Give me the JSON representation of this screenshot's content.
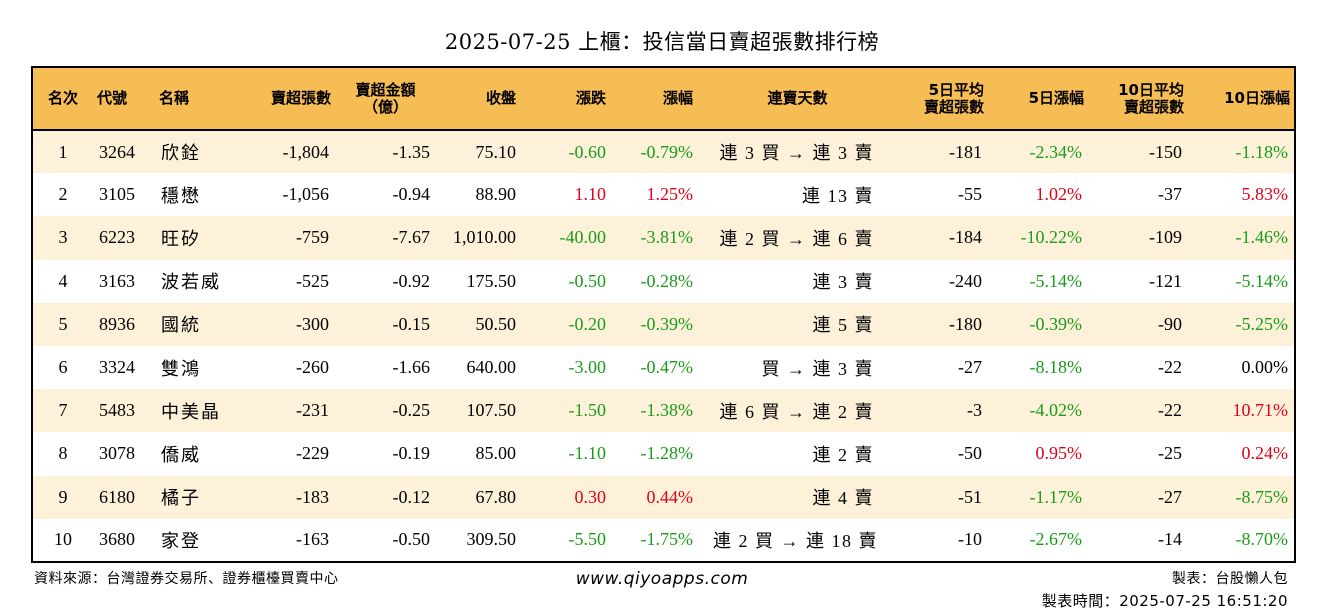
{
  "title": "2025-07-25 上櫃：投信當日賣超張數排行榜",
  "headers": {
    "rank": "名次",
    "code": "代號",
    "name": "名稱",
    "net_sell_lots": "賣超張數",
    "net_sell_amount_line1": "賣超金額",
    "net_sell_amount_line2": "（億）",
    "close": "收盤",
    "change": "漲跌",
    "change_pct": "漲幅",
    "streak": "連賣天數",
    "avg5_line1": "5日平均",
    "avg5_line2": "賣超張數",
    "chg5": "5日漲幅",
    "avg10_line1": "10日平均",
    "avg10_line2": "賣超張數",
    "chg10": "10日漲幅"
  },
  "rows": [
    {
      "rank": "1",
      "code": "3264",
      "name": "欣銓",
      "lots": "-1,804",
      "amount": "-1.35",
      "close": "75.10",
      "change": "-0.60",
      "change_dir": "down",
      "pct": "-0.79%",
      "pct_dir": "down",
      "streak": "連 3 買 → 連 3 賣",
      "avg5": "-181",
      "chg5": "-2.34%",
      "chg5_dir": "down",
      "avg10": "-150",
      "chg10": "-1.18%",
      "chg10_dir": "down"
    },
    {
      "rank": "2",
      "code": "3105",
      "name": "穩懋",
      "lots": "-1,056",
      "amount": "-0.94",
      "close": "88.90",
      "change": "1.10",
      "change_dir": "up",
      "pct": "1.25%",
      "pct_dir": "up",
      "streak": "連 13 賣",
      "avg5": "-55",
      "chg5": "1.02%",
      "chg5_dir": "up",
      "avg10": "-37",
      "chg10": "5.83%",
      "chg10_dir": "up"
    },
    {
      "rank": "3",
      "code": "6223",
      "name": "旺矽",
      "lots": "-759",
      "amount": "-7.67",
      "close": "1,010.00",
      "change": "-40.00",
      "change_dir": "down",
      "pct": "-3.81%",
      "pct_dir": "down",
      "streak": "連 2 買 → 連 6 賣",
      "avg5": "-184",
      "chg5": "-10.22%",
      "chg5_dir": "down",
      "avg10": "-109",
      "chg10": "-1.46%",
      "chg10_dir": "down"
    },
    {
      "rank": "4",
      "code": "3163",
      "name": "波若威",
      "lots": "-525",
      "amount": "-0.92",
      "close": "175.50",
      "change": "-0.50",
      "change_dir": "down",
      "pct": "-0.28%",
      "pct_dir": "down",
      "streak": "連 3 賣",
      "avg5": "-240",
      "chg5": "-5.14%",
      "chg5_dir": "down",
      "avg10": "-121",
      "chg10": "-5.14%",
      "chg10_dir": "down"
    },
    {
      "rank": "5",
      "code": "8936",
      "name": "國統",
      "lots": "-300",
      "amount": "-0.15",
      "close": "50.50",
      "change": "-0.20",
      "change_dir": "down",
      "pct": "-0.39%",
      "pct_dir": "down",
      "streak": "連 5 賣",
      "avg5": "-180",
      "chg5": "-0.39%",
      "chg5_dir": "down",
      "avg10": "-90",
      "chg10": "-5.25%",
      "chg10_dir": "down"
    },
    {
      "rank": "6",
      "code": "3324",
      "name": "雙鴻",
      "lots": "-260",
      "amount": "-1.66",
      "close": "640.00",
      "change": "-3.00",
      "change_dir": "down",
      "pct": "-0.47%",
      "pct_dir": "down",
      "streak": "買 → 連 3 賣",
      "avg5": "-27",
      "chg5": "-8.18%",
      "chg5_dir": "down",
      "avg10": "-22",
      "chg10": "0.00%",
      "chg10_dir": "flat"
    },
    {
      "rank": "7",
      "code": "5483",
      "name": "中美晶",
      "lots": "-231",
      "amount": "-0.25",
      "close": "107.50",
      "change": "-1.50",
      "change_dir": "down",
      "pct": "-1.38%",
      "pct_dir": "down",
      "streak": "連 6 買 → 連 2 賣",
      "avg5": "-3",
      "chg5": "-4.02%",
      "chg5_dir": "down",
      "avg10": "-22",
      "chg10": "10.71%",
      "chg10_dir": "up"
    },
    {
      "rank": "8",
      "code": "3078",
      "name": "僑威",
      "lots": "-229",
      "amount": "-0.19",
      "close": "85.00",
      "change": "-1.10",
      "change_dir": "down",
      "pct": "-1.28%",
      "pct_dir": "down",
      "streak": "連 2 賣",
      "avg5": "-50",
      "chg5": "0.95%",
      "chg5_dir": "up",
      "avg10": "-25",
      "chg10": "0.24%",
      "chg10_dir": "up"
    },
    {
      "rank": "9",
      "code": "6180",
      "name": "橘子",
      "lots": "-183",
      "amount": "-0.12",
      "close": "67.80",
      "change": "0.30",
      "change_dir": "up",
      "pct": "0.44%",
      "pct_dir": "up",
      "streak": "連 4 賣",
      "avg5": "-51",
      "chg5": "-1.17%",
      "chg5_dir": "down",
      "avg10": "-27",
      "chg10": "-8.75%",
      "chg10_dir": "down"
    },
    {
      "rank": "10",
      "code": "3680",
      "name": "家登",
      "lots": "-163",
      "amount": "-0.50",
      "close": "309.50",
      "change": "-5.50",
      "change_dir": "down",
      "pct": "-1.75%",
      "pct_dir": "down",
      "streak": "連 2 買 → 連 18 賣",
      "avg5": "-10",
      "chg5": "-2.67%",
      "chg5_dir": "down",
      "avg10": "-14",
      "chg10": "-8.70%",
      "chg10_dir": "down"
    }
  ],
  "colors": {
    "header_bg": "#f7bd55",
    "stripe_bg": "#fdf2d9",
    "up": "#e0001a",
    "down": "#1a9c1a"
  },
  "footer": {
    "source": "資料來源：台灣證券交易所、證券櫃檯買賣中心",
    "site": "www.qiyoapps.com",
    "maker": "製表：台股懶人包",
    "time": "製表時間：2025-07-25 16:51:20"
  }
}
